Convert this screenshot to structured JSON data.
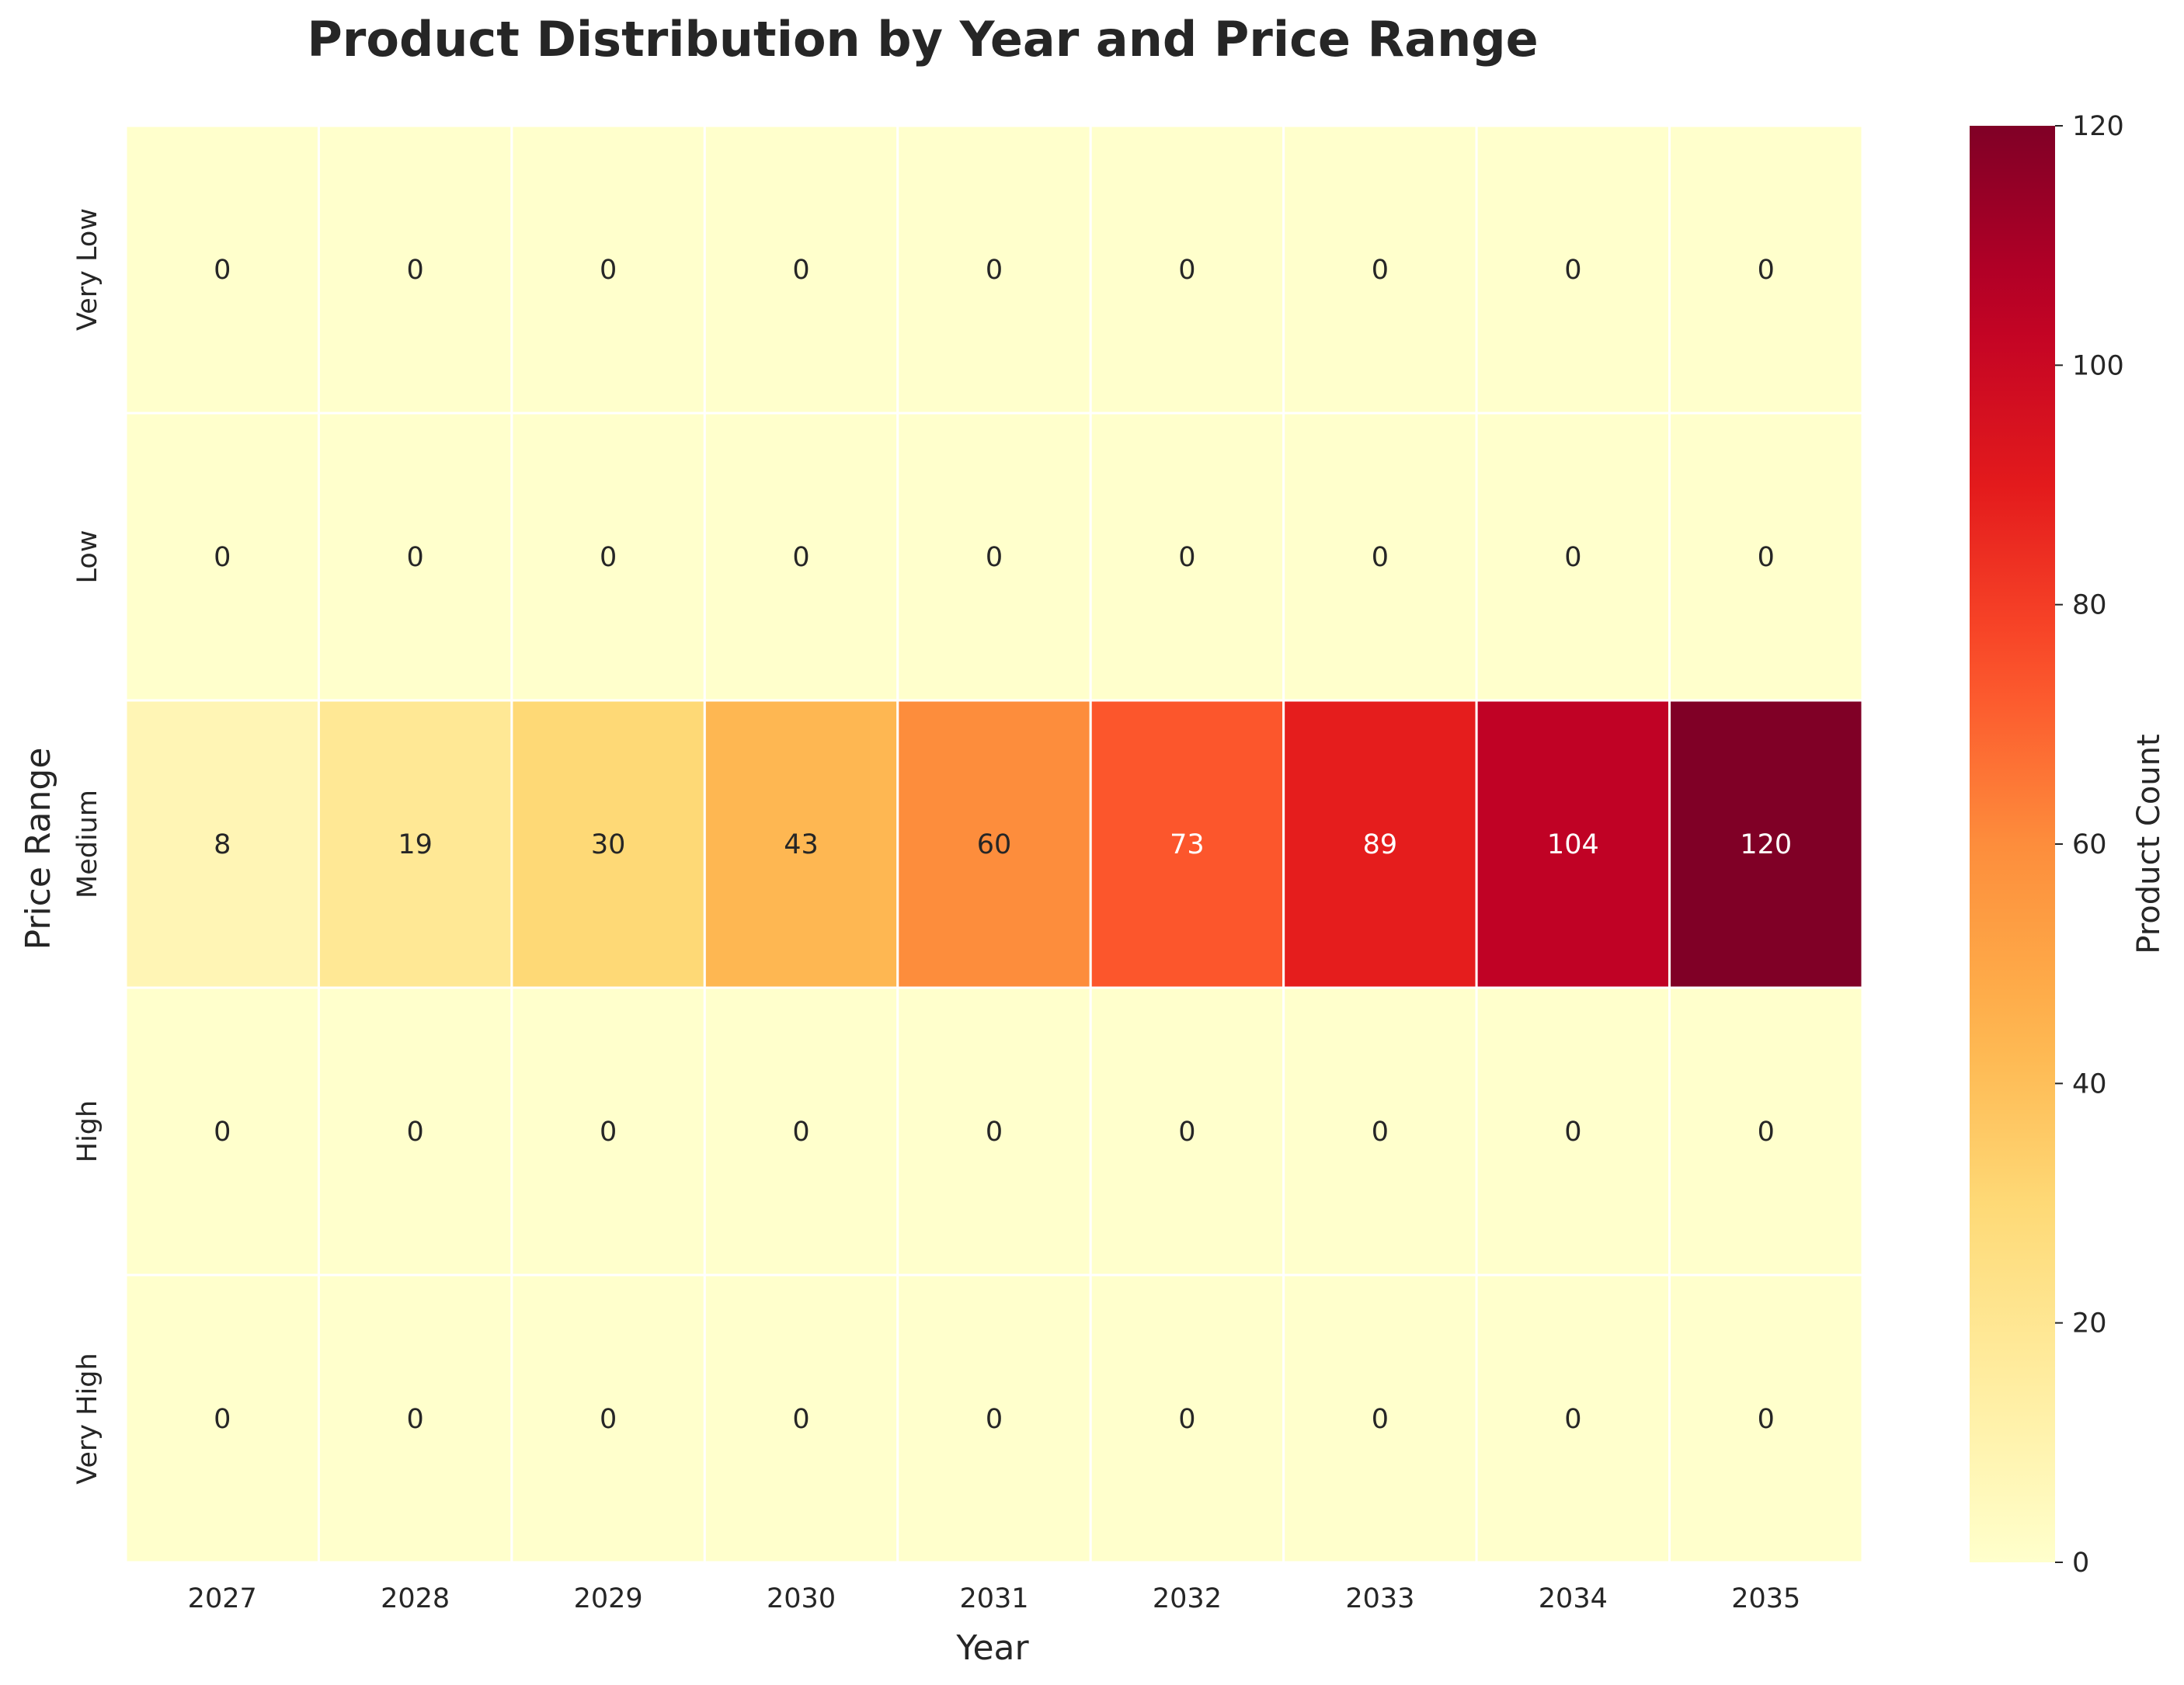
{
  "chart_data": {
    "type": "heatmap",
    "title": "Product Distribution by Year and Price Range",
    "xlabel": "Year",
    "ylabel": "Price Range",
    "x_categories": [
      "2027",
      "2028",
      "2029",
      "2030",
      "2031",
      "2032",
      "2033",
      "2034",
      "2035"
    ],
    "y_categories": [
      "Very Low",
      "Low",
      "Medium",
      "High",
      "Very High"
    ],
    "values": [
      [
        0,
        0,
        0,
        0,
        0,
        0,
        0,
        0,
        0
      ],
      [
        0,
        0,
        0,
        0,
        0,
        0,
        0,
        0,
        0
      ],
      [
        8,
        19,
        30,
        43,
        60,
        73,
        89,
        104,
        120
      ],
      [
        0,
        0,
        0,
        0,
        0,
        0,
        0,
        0,
        0
      ],
      [
        0,
        0,
        0,
        0,
        0,
        0,
        0,
        0,
        0
      ]
    ],
    "colorbar": {
      "label": "Product Count",
      "range": [
        0,
        120
      ],
      "ticks": [
        0,
        20,
        40,
        60,
        80,
        100,
        120
      ],
      "colormap": "YlOrRd"
    },
    "grid": false,
    "cell_annotations": true
  }
}
